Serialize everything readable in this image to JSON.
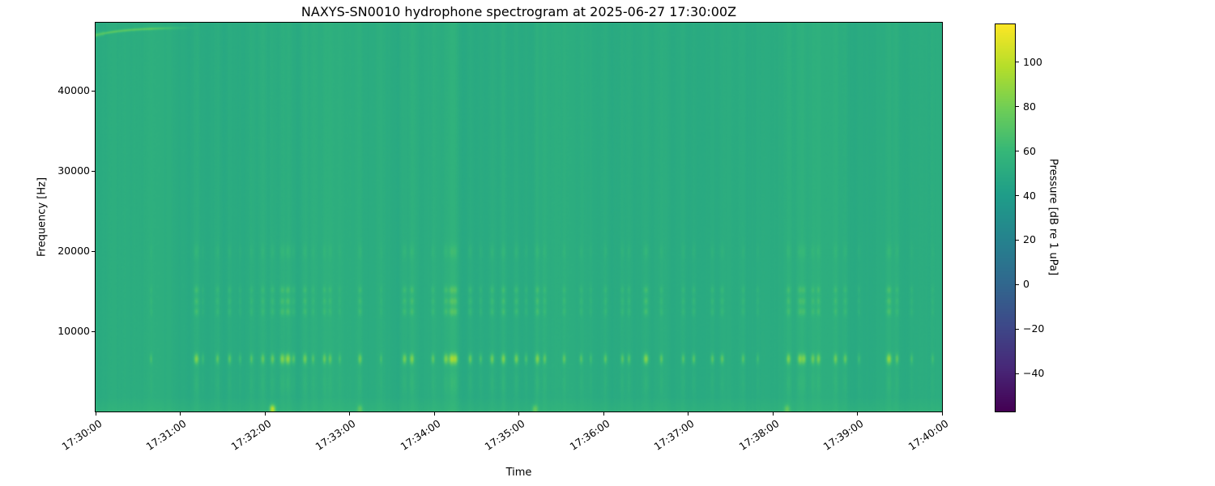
{
  "figure": {
    "background": "#ffffff"
  },
  "chart_data": {
    "type": "heatmap",
    "subtype": "spectrogram",
    "title": "NAXYS-SN0010 hydrophone spectrogram at 2025-06-27 17:30:00Z",
    "xlabel": "Time",
    "ylabel": "Frequency [Hz]",
    "grid": false,
    "time_range_s": [
      0,
      600
    ],
    "x_start_label": "17:30:00",
    "x_end_label": "17:40:00",
    "x_tick_seconds": [
      0,
      60,
      120,
      180,
      240,
      300,
      360,
      420,
      480,
      540,
      600
    ],
    "x_tick_labels": [
      "17:30:00",
      "17:31:00",
      "17:32:00",
      "17:33:00",
      "17:34:00",
      "17:35:00",
      "17:36:00",
      "17:37:00",
      "17:38:00",
      "17:39:00",
      "17:40:00"
    ],
    "freq_range_hz": [
      0,
      48500
    ],
    "y_tick_values": [
      10000,
      20000,
      30000,
      40000
    ],
    "y_tick_labels": [
      "10000",
      "20000",
      "30000",
      "40000"
    ],
    "colorbar": {
      "label": "Pressure [dB re 1 uPa]",
      "vmin": -57,
      "vmax": 117,
      "tick_values": [
        100,
        80,
        60,
        40,
        20,
        0,
        -20,
        -40
      ],
      "tick_labels": [
        "100",
        "80",
        "60",
        "40",
        "20",
        "0",
        "−20",
        "−40"
      ],
      "colormap": "viridis",
      "stops": [
        [
          0,
          "#440154"
        ],
        [
          0.11,
          "#482878"
        ],
        [
          0.22,
          "#3e4989"
        ],
        [
          0.33,
          "#31688e"
        ],
        [
          0.44,
          "#26828e"
        ],
        [
          0.56,
          "#1f9e89"
        ],
        [
          0.67,
          "#35b779"
        ],
        [
          0.78,
          "#6ece58"
        ],
        [
          0.89,
          "#b5de2b"
        ],
        [
          1,
          "#fde725"
        ]
      ]
    },
    "background_level_db": 51,
    "features": {
      "surface_noise_band": {
        "f_max_hz": 1800,
        "boost_db": 4.2
      },
      "chirp": {
        "t_start_s": 0,
        "t_end_s": 75,
        "f_start_hz": 47000,
        "f_asymptote_hz": 47950,
        "tau_s": 22,
        "peak_boost_db": 19
      },
      "click_dash_band_hz": 6600,
      "click_mid_bands_hz": [
        12500,
        13800,
        15200
      ],
      "click_high_band_hz": 20000,
      "click_low_band_hz": 3600,
      "clicks_t_strength": [
        [
          39,
          0.3
        ],
        [
          71,
          0.8
        ],
        [
          76,
          0.3
        ],
        [
          86,
          0.5
        ],
        [
          95,
          0.5
        ],
        [
          102,
          0.3
        ],
        [
          110,
          0.45
        ],
        [
          118,
          0.55
        ],
        [
          125,
          0.6
        ],
        [
          132,
          0.8
        ],
        [
          136,
          0.9
        ],
        [
          140,
          0.5
        ],
        [
          148,
          0.65
        ],
        [
          154,
          0.4
        ],
        [
          162,
          0.55
        ],
        [
          166,
          0.5
        ],
        [
          173,
          0.3
        ],
        [
          187,
          0.6
        ],
        [
          202,
          0.3
        ],
        [
          219,
          0.7
        ],
        [
          224,
          0.75
        ],
        [
          239,
          0.5
        ],
        [
          248,
          0.75
        ],
        [
          252,
          0.95
        ],
        [
          255,
          0.85
        ],
        [
          265,
          0.6
        ],
        [
          273,
          0.4
        ],
        [
          281,
          0.65
        ],
        [
          289,
          0.75
        ],
        [
          298,
          0.7
        ],
        [
          305,
          0.4
        ],
        [
          313,
          0.75
        ],
        [
          318,
          0.5
        ],
        [
          332,
          0.5
        ],
        [
          344,
          0.45
        ],
        [
          351,
          0.3
        ],
        [
          361,
          0.5
        ],
        [
          373,
          0.5
        ],
        [
          378,
          0.45
        ],
        [
          390,
          0.85
        ],
        [
          401,
          0.5
        ],
        [
          416,
          0.45
        ],
        [
          424,
          0.5
        ],
        [
          437,
          0.5
        ],
        [
          444,
          0.55
        ],
        [
          459,
          0.45
        ],
        [
          469,
          0.3
        ],
        [
          491,
          0.7
        ],
        [
          499,
          0.75
        ],
        [
          502,
          0.7
        ],
        [
          508,
          0.6
        ],
        [
          512,
          0.65
        ],
        [
          524,
          0.6
        ],
        [
          531,
          0.55
        ],
        [
          541,
          0.3
        ],
        [
          562,
          0.9
        ],
        [
          568,
          0.5
        ],
        [
          578,
          0.35
        ],
        [
          593,
          0.3
        ]
      ],
      "splashes_t_strength": [
        [
          125,
          1.0
        ],
        [
          187,
          0.35
        ],
        [
          311,
          0.45
        ],
        [
          490,
          0.4
        ]
      ]
    }
  }
}
